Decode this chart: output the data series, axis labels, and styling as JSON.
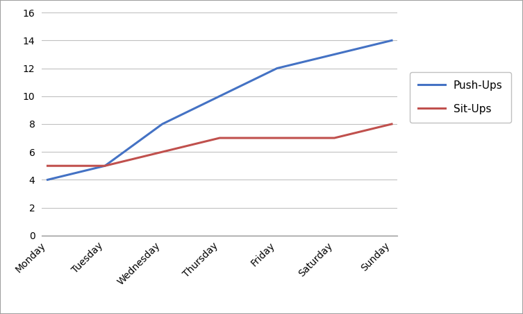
{
  "categories": [
    "Monday",
    "Tuesday",
    "Wednesday",
    "Thursday",
    "Friday",
    "Saturday",
    "Sunday"
  ],
  "pushups": [
    4,
    5,
    8,
    10,
    12,
    13,
    14
  ],
  "situps": [
    5,
    5,
    6,
    7,
    7,
    7,
    8
  ],
  "pushups_color": "#4472C4",
  "situps_color": "#C0504D",
  "pushups_label": "Push-Ups",
  "situps_label": "Sit-Ups",
  "ylim": [
    0,
    16
  ],
  "yticks": [
    0,
    2,
    4,
    6,
    8,
    10,
    12,
    14,
    16
  ],
  "line_width": 2.2,
  "background_color": "#ffffff",
  "grid_color": "#c0c0c0",
  "legend_fontsize": 11,
  "tick_fontsize": 10,
  "border_color": "#a0a0a0"
}
